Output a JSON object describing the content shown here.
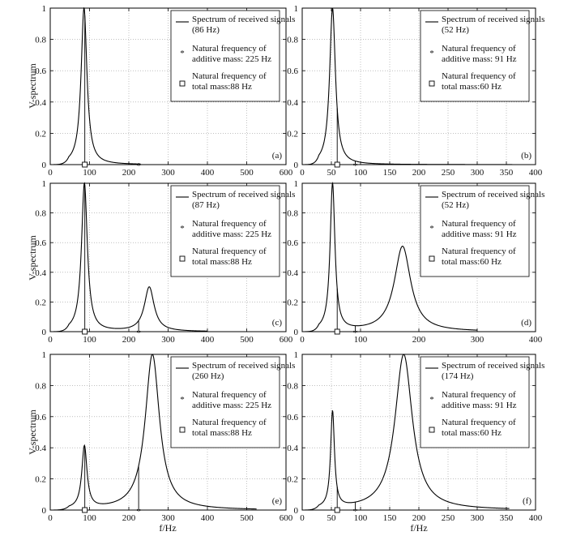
{
  "figure": {
    "ylabel": "V-spectrum",
    "xlabel": "f/Hz"
  },
  "chart_data": [
    {
      "type": "line",
      "panel_label": "(a)",
      "xlim": [
        0,
        600
      ],
      "ylim": [
        0,
        1
      ],
      "xticks": [
        0,
        100,
        200,
        300,
        400,
        500,
        600
      ],
      "yticks": [
        0,
        0.2,
        0.4,
        0.6,
        0.8,
        1
      ],
      "series": [
        {
          "name": "Spectrum of received signals(86 Hz)",
          "peaks": [
            [
              86,
              1.0,
              9
            ]
          ],
          "x_range": [
            0,
            230
          ]
        }
      ],
      "markers": {
        "additive": {
          "label": "Natural frequency of additive mass:  225 Hz",
          "x": 225
        },
        "total": {
          "label": "Natural frequency of total mass:88 Hz",
          "x": 88
        }
      },
      "vlines": [
        88
      ]
    },
    {
      "type": "line",
      "panel_label": "(b)",
      "xlim": [
        0,
        400
      ],
      "ylim": [
        0,
        1
      ],
      "xticks": [
        0,
        50,
        100,
        150,
        200,
        250,
        300,
        350,
        400
      ],
      "yticks": [
        0,
        0.2,
        0.4,
        0.6,
        0.8,
        1
      ],
      "series": [
        {
          "name": "Spectrum of received signals(52 Hz)",
          "peaks": [
            [
              52,
              1.0,
              6
            ]
          ],
          "x_range": [
            0,
            360
          ]
        }
      ],
      "markers": {
        "additive": {
          "label": "Natural frequency of additive mass:  91 Hz",
          "x": 91
        },
        "total": {
          "label": "Natural frequency of total mass:60 Hz",
          "x": 60
        }
      },
      "vlines": [
        60,
        91
      ]
    },
    {
      "type": "line",
      "panel_label": "(c)",
      "xlim": [
        0,
        600
      ],
      "ylim": [
        0,
        1
      ],
      "xticks": [
        0,
        100,
        200,
        300,
        400,
        500,
        600
      ],
      "yticks": [
        0,
        0.2,
        0.4,
        0.6,
        0.8,
        1
      ],
      "series": [
        {
          "name": "Spectrum of received signals(87 Hz)",
          "peaks": [
            [
              87,
              1.0,
              9
            ],
            [
              252,
              0.3,
              15
            ]
          ],
          "x_range": [
            0,
            400
          ]
        }
      ],
      "markers": {
        "additive": {
          "label": "Natural frequency of additive mass:  225 Hz",
          "x": 225
        },
        "total": {
          "label": "Natural frequency of total mass:88 Hz",
          "x": 88
        }
      },
      "vlines": [
        88,
        225
      ]
    },
    {
      "type": "line",
      "panel_label": "(d)",
      "xlim": [
        0,
        400
      ],
      "ylim": [
        0,
        1
      ],
      "xticks": [
        0,
        100,
        200,
        300,
        400
      ],
      "yticks": [
        0,
        0.2,
        0.4,
        0.6,
        0.8,
        1
      ],
      "series": [
        {
          "name": "Spectrum of received signals(52 Hz)",
          "peaks": [
            [
              52,
              1.0,
              5
            ],
            [
              172,
              0.58,
              17
            ]
          ],
          "x_range": [
            0,
            300
          ]
        }
      ],
      "markers": {
        "additive": {
          "label": "Natural frequency of additive mass:  91 Hz",
          "x": 91
        },
        "total": {
          "label": "Natural frequency of total mass:60 Hz",
          "x": 60
        }
      },
      "vlines": [
        60,
        91
      ]
    },
    {
      "type": "line",
      "panel_label": "(e)",
      "xlim": [
        0,
        600
      ],
      "ylim": [
        0,
        1
      ],
      "xticks": [
        0,
        100,
        200,
        300,
        400,
        500,
        600
      ],
      "yticks": [
        0,
        0.2,
        0.4,
        0.6,
        0.8,
        1
      ],
      "series": [
        {
          "name": "Spectrum of received signals(260 Hz)",
          "peaks": [
            [
              87,
              0.4,
              8
            ],
            [
              260,
              1.0,
              22
            ]
          ],
          "x_range": [
            0,
            525
          ]
        }
      ],
      "markers": {
        "additive": {
          "label": "Natural frequency of additive mass:  225 Hz",
          "x": 225
        },
        "total": {
          "label": "Natural frequency of total mass:88 Hz",
          "x": 88
        }
      },
      "vlines": [
        88,
        225
      ]
    },
    {
      "type": "line",
      "panel_label": "(f)",
      "xlim": [
        0,
        400
      ],
      "ylim": [
        0,
        1
      ],
      "xticks": [
        0,
        50,
        100,
        150,
        200,
        250,
        300,
        350,
        400
      ],
      "yticks": [
        0,
        0.2,
        0.4,
        0.6,
        0.8,
        1
      ],
      "series": [
        {
          "name": "Spectrum of received signals(174 Hz)",
          "peaks": [
            [
              52,
              0.62,
              4
            ],
            [
              174,
              1.0,
              18
            ]
          ],
          "x_range": [
            0,
            355
          ]
        }
      ],
      "markers": {
        "additive": {
          "label": "Natural frequency of additive mass:  91 Hz",
          "x": 91
        },
        "total": {
          "label": "Natural frequency of total mass:60 Hz",
          "x": 60
        }
      },
      "vlines": [
        60,
        91
      ]
    }
  ]
}
